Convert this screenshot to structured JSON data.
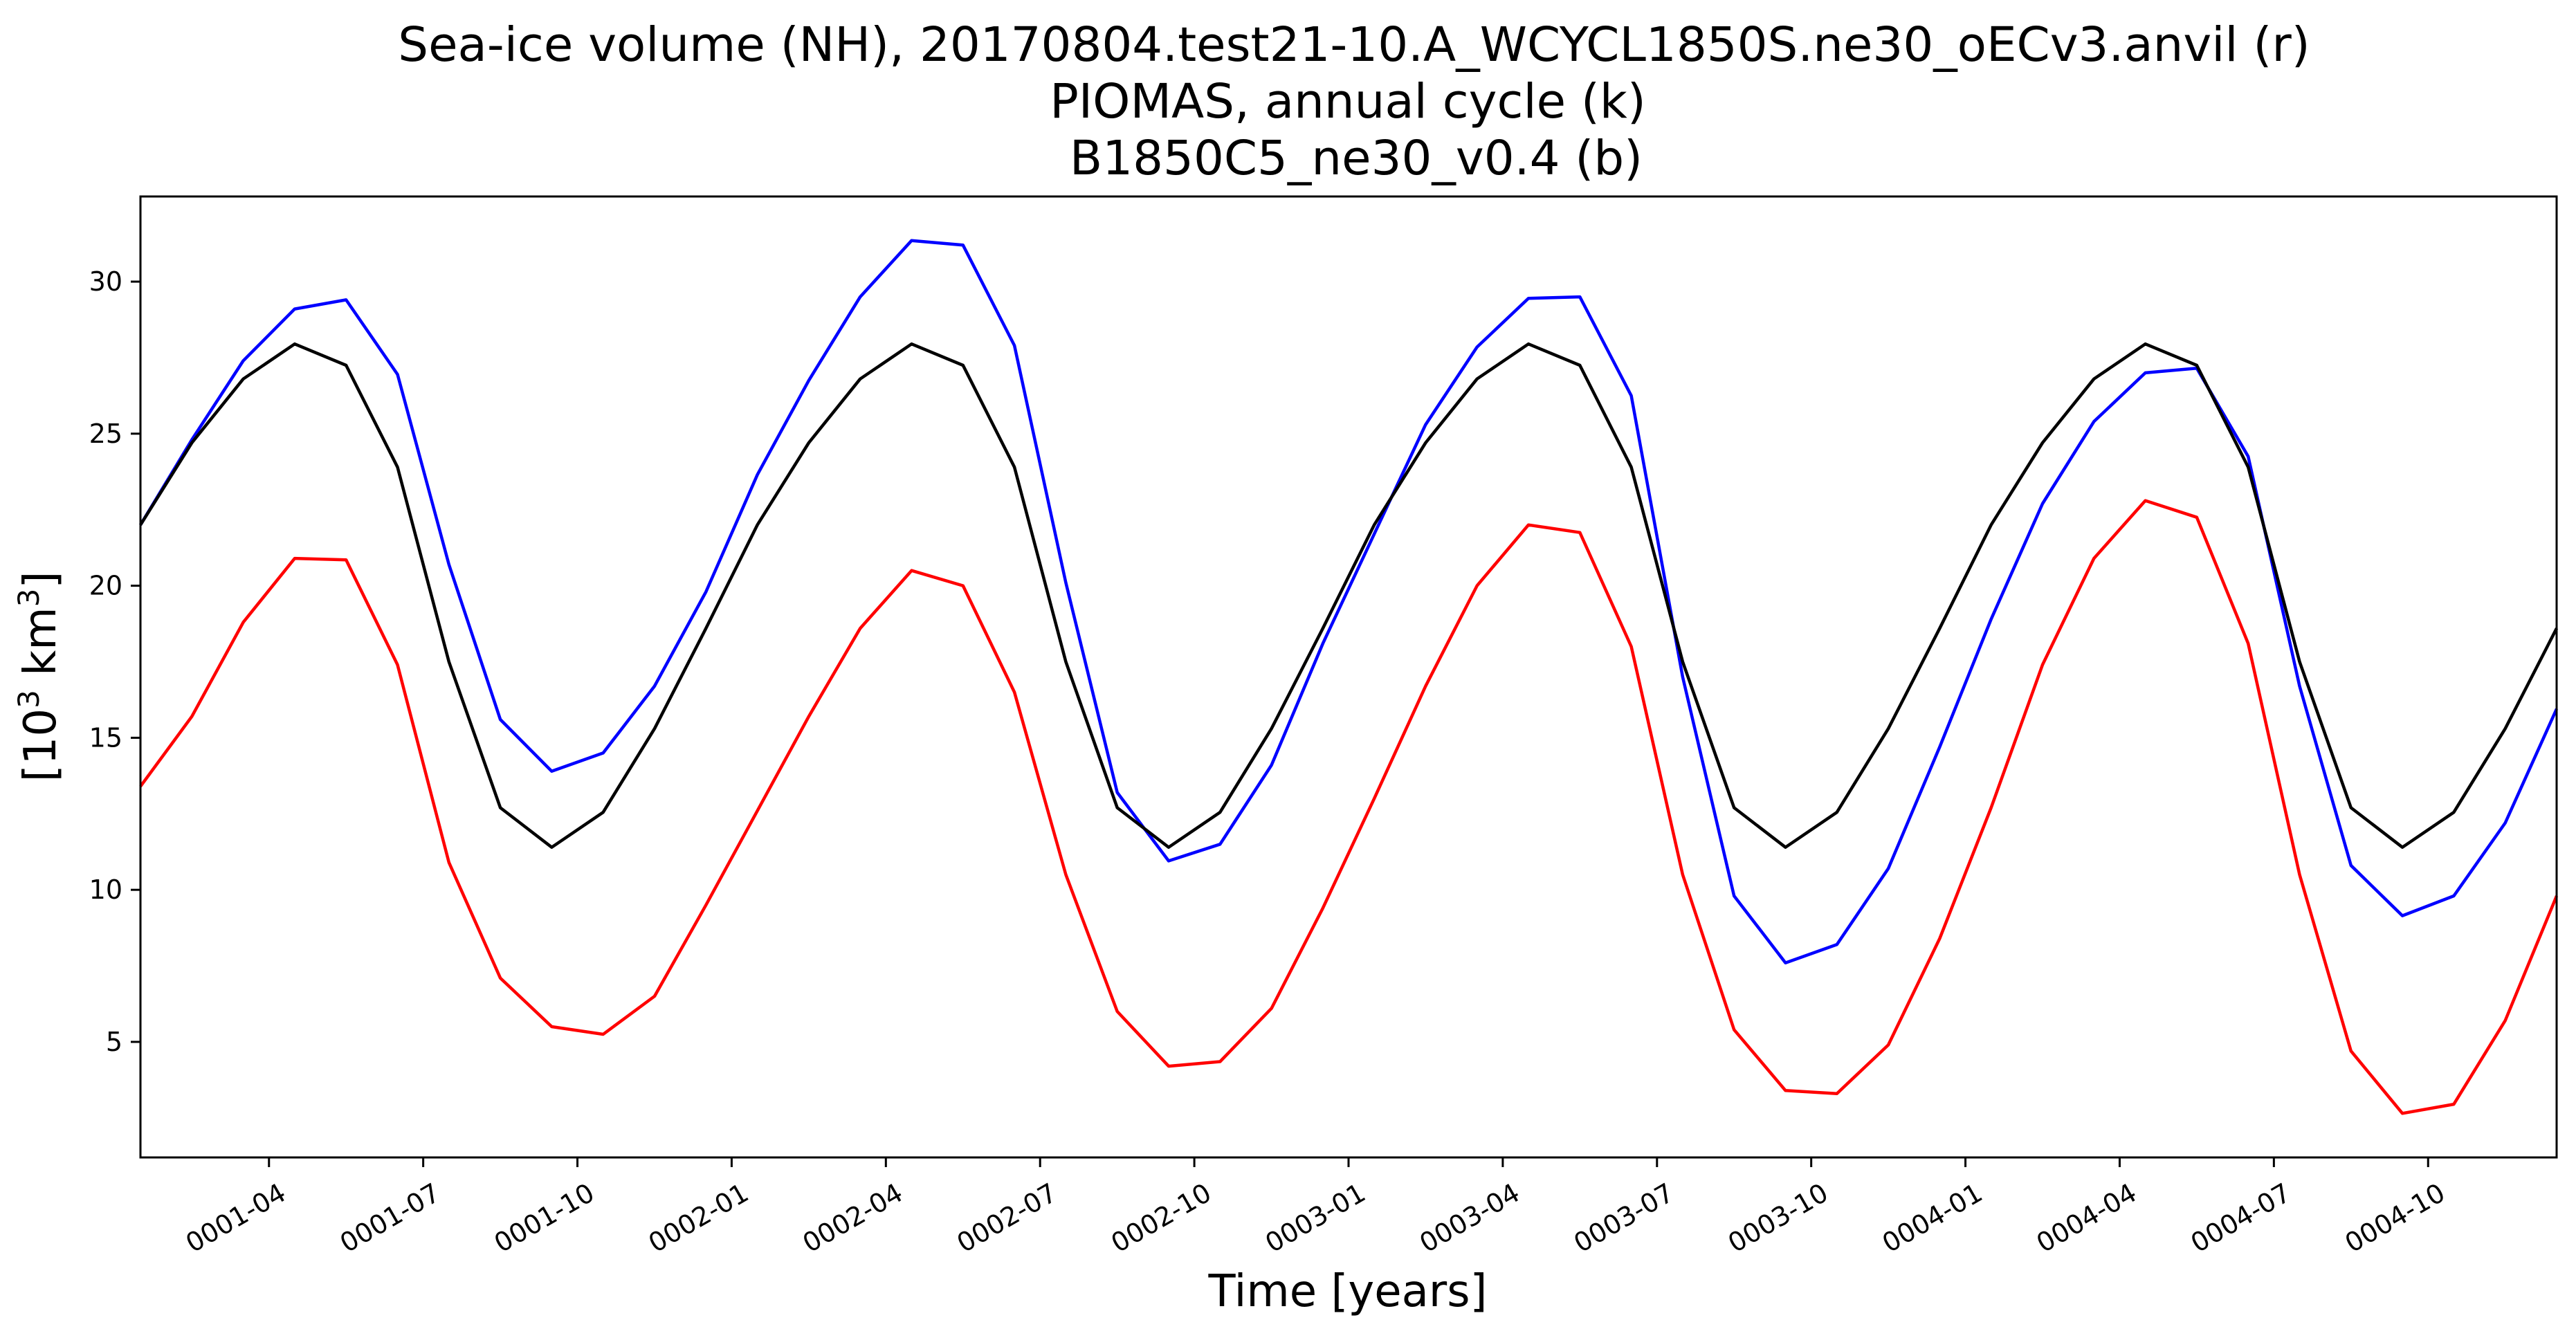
{
  "chart_data": {
    "type": "line",
    "title_lines": [
      "Sea-ice volume (NH), 20170804.test21-10.A_WCYCL1850S.ne30_oECv3.anvil (r)",
      "PIOMAS, annual cycle (k)",
      "B1850C5_ne30_v0.4 (b)"
    ],
    "xlabel": "Time [years]",
    "ylabel_base": "[10",
    "ylabel_sup": "3",
    "ylabel_unit": " km",
    "ylabel_sup2": "3",
    "ylabel_close": "]",
    "x_units": "months since 0001-01",
    "xlim": [
      0,
      47
    ],
    "ylim": [
      1.2,
      32.8
    ],
    "yticks": [
      5,
      10,
      15,
      20,
      25,
      30
    ],
    "xticks": [
      {
        "label": "0001-04",
        "t": 2.5
      },
      {
        "label": "0001-07",
        "t": 5.5
      },
      {
        "label": "0001-10",
        "t": 8.5
      },
      {
        "label": "0002-01",
        "t": 11.5
      },
      {
        "label": "0002-04",
        "t": 14.5
      },
      {
        "label": "0002-07",
        "t": 17.5
      },
      {
        "label": "0002-10",
        "t": 20.5
      },
      {
        "label": "0003-01",
        "t": 23.5
      },
      {
        "label": "0003-04",
        "t": 26.5
      },
      {
        "label": "0003-07",
        "t": 29.5
      },
      {
        "label": "0003-10",
        "t": 32.5
      },
      {
        "label": "0004-01",
        "t": 35.5
      },
      {
        "label": "0004-04",
        "t": 38.5
      },
      {
        "label": "0004-07",
        "t": 41.5
      },
      {
        "label": "0004-10",
        "t": 44.5
      }
    ],
    "series": [
      {
        "color": "#ff0000",
        "values": [
          13.4,
          15.7,
          18.8,
          20.9,
          20.85,
          17.4,
          10.9,
          7.1,
          5.5,
          5.25,
          6.5,
          9.5,
          12.6,
          15.7,
          18.6,
          20.5,
          20.0,
          16.5,
          10.5,
          6.0,
          4.2,
          4.35,
          6.1,
          9.4,
          13.0,
          16.7,
          20.0,
          22.0,
          21.75,
          18.0,
          10.5,
          5.4,
          3.4,
          3.3,
          4.9,
          8.4,
          12.7,
          17.4,
          20.9,
          22.8,
          22.25,
          18.1,
          10.5,
          4.7,
          2.65,
          2.95,
          5.7,
          9.8
        ]
      },
      {
        "color": "#0000ff",
        "values": [
          22.0,
          24.8,
          27.4,
          29.1,
          29.4,
          26.95,
          20.7,
          15.6,
          13.9,
          14.5,
          16.7,
          19.8,
          23.65,
          26.75,
          29.5,
          31.35,
          31.2,
          27.9,
          20.1,
          13.2,
          10.95,
          11.5,
          14.1,
          18.1,
          21.7,
          25.3,
          27.85,
          29.45,
          29.5,
          26.25,
          17.0,
          9.8,
          7.6,
          8.2,
          10.7,
          14.7,
          18.9,
          22.7,
          25.4,
          27.0,
          27.15,
          24.25,
          16.7,
          10.8,
          9.15,
          9.8,
          12.2,
          15.95
        ]
      },
      {
        "color": "#000000",
        "values": [
          22.0,
          24.7,
          26.8,
          27.95,
          27.25,
          23.9,
          17.5,
          12.7,
          11.4,
          12.55,
          15.3,
          18.6,
          22.0,
          24.7,
          26.8,
          27.95,
          27.25,
          23.9,
          17.5,
          12.7,
          11.4,
          12.55,
          15.3,
          18.6,
          22.0,
          24.7,
          26.8,
          27.95,
          27.25,
          23.9,
          17.5,
          12.7,
          11.4,
          12.55,
          15.3,
          18.6,
          22.0,
          24.7,
          26.8,
          27.95,
          27.25,
          23.9,
          17.5,
          12.7,
          11.4,
          12.55,
          15.3,
          18.6
        ]
      }
    ],
    "grid": false,
    "legend": "none"
  }
}
